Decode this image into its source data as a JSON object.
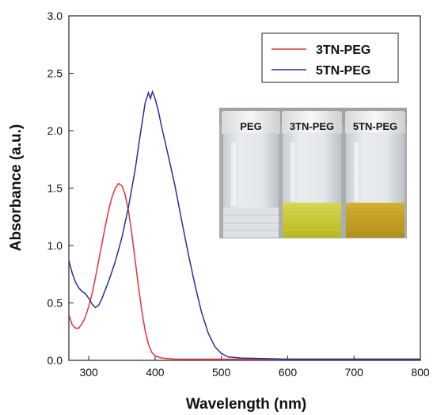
{
  "chart_data": {
    "type": "line",
    "xlabel": "Wavelength (nm)",
    "ylabel": "Absorbance (a.u.)",
    "xlim": [
      270,
      800
    ],
    "ylim": [
      0,
      3.0
    ],
    "x_ticks": [
      300,
      400,
      500,
      600,
      700,
      800
    ],
    "y_ticks": [
      0.0,
      0.5,
      1.0,
      1.5,
      2.0,
      2.5,
      3.0
    ],
    "x_tick_labels": [
      "300",
      "400",
      "500",
      "600",
      "700",
      "800"
    ],
    "y_tick_labels": [
      "0.0",
      "0.5",
      "1.0",
      "1.5",
      "2.0",
      "2.5",
      "3.0"
    ],
    "legend_position": "top-right",
    "series": [
      {
        "name": "3TN-PEG",
        "color": "#e8303a",
        "points": [
          [
            270,
            0.4
          ],
          [
            275,
            0.31
          ],
          [
            280,
            0.28
          ],
          [
            285,
            0.28
          ],
          [
            290,
            0.32
          ],
          [
            295,
            0.38
          ],
          [
            300,
            0.47
          ],
          [
            305,
            0.58
          ],
          [
            310,
            0.72
          ],
          [
            315,
            0.87
          ],
          [
            320,
            1.02
          ],
          [
            325,
            1.17
          ],
          [
            330,
            1.31
          ],
          [
            335,
            1.42
          ],
          [
            340,
            1.5
          ],
          [
            345,
            1.54
          ],
          [
            350,
            1.52
          ],
          [
            355,
            1.44
          ],
          [
            360,
            1.3
          ],
          [
            365,
            1.1
          ],
          [
            370,
            0.87
          ],
          [
            375,
            0.64
          ],
          [
            380,
            0.43
          ],
          [
            385,
            0.26
          ],
          [
            390,
            0.14
          ],
          [
            395,
            0.07
          ],
          [
            400,
            0.04
          ],
          [
            410,
            0.02
          ],
          [
            430,
            0.01
          ],
          [
            500,
            0.01
          ],
          [
            600,
            0.01
          ],
          [
            700,
            0.01
          ],
          [
            800,
            0.01
          ]
        ]
      },
      {
        "name": "5TN-PEG",
        "color": "#2a2f9e",
        "points": [
          [
            270,
            0.87
          ],
          [
            275,
            0.76
          ],
          [
            280,
            0.68
          ],
          [
            285,
            0.63
          ],
          [
            290,
            0.6
          ],
          [
            295,
            0.58
          ],
          [
            300,
            0.54
          ],
          [
            305,
            0.49
          ],
          [
            310,
            0.46
          ],
          [
            315,
            0.48
          ],
          [
            320,
            0.54
          ],
          [
            330,
            0.69
          ],
          [
            340,
            0.86
          ],
          [
            350,
            1.07
          ],
          [
            360,
            1.34
          ],
          [
            370,
            1.66
          ],
          [
            378,
            1.98
          ],
          [
            385,
            2.24
          ],
          [
            390,
            2.33
          ],
          [
            393,
            2.28
          ],
          [
            396,
            2.34
          ],
          [
            400,
            2.28
          ],
          [
            405,
            2.17
          ],
          [
            410,
            2.03
          ],
          [
            420,
            1.78
          ],
          [
            430,
            1.52
          ],
          [
            440,
            1.22
          ],
          [
            450,
            0.93
          ],
          [
            460,
            0.66
          ],
          [
            470,
            0.42
          ],
          [
            480,
            0.24
          ],
          [
            490,
            0.12
          ],
          [
            500,
            0.06
          ],
          [
            510,
            0.03
          ],
          [
            530,
            0.02
          ],
          [
            600,
            0.01
          ],
          [
            700,
            0.01
          ],
          [
            800,
            0.01
          ]
        ]
      }
    ],
    "inset_labels": [
      "PEG",
      "3TN-PEG",
      "5TN-PEG"
    ]
  }
}
